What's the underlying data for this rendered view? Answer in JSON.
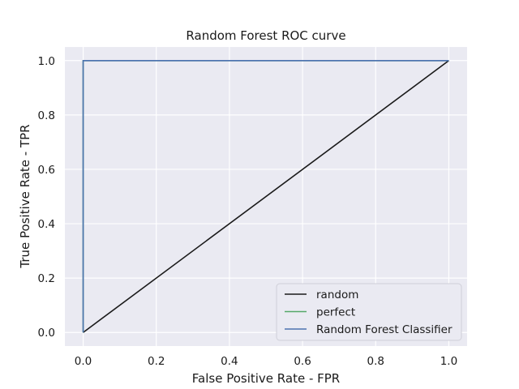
{
  "chart_data": {
    "type": "line",
    "title": "Random Forest ROC curve",
    "xlabel": "False Positive Rate - FPR",
    "ylabel": "True Positive Rate - TPR",
    "xlim": [
      -0.05,
      1.05
    ],
    "ylim": [
      -0.05,
      1.05
    ],
    "xticks": [
      0.0,
      0.2,
      0.4,
      0.6,
      0.8,
      1.0
    ],
    "yticks": [
      0.0,
      0.2,
      0.4,
      0.6,
      0.8,
      1.0
    ],
    "xtick_labels": [
      "0.0",
      "0.2",
      "0.4",
      "0.6",
      "0.8",
      "1.0"
    ],
    "ytick_labels": [
      "0.0",
      "0.2",
      "0.4",
      "0.6",
      "0.8",
      "1.0"
    ],
    "grid": true,
    "background": "#eaeaf2",
    "grid_color": "#ffffff",
    "legend_position": "lower right",
    "series": [
      {
        "name": "random",
        "color": "#1a1a1a",
        "x": [
          0,
          1
        ],
        "y": [
          0,
          1
        ]
      },
      {
        "name": "perfect",
        "color": "#55a868",
        "x": [
          0,
          0,
          1
        ],
        "y": [
          0,
          1,
          1
        ]
      },
      {
        "name": "Random Forest Classifier",
        "color": "#4c72b0",
        "x": [
          0,
          0,
          1
        ],
        "y": [
          0,
          1,
          1
        ]
      }
    ]
  }
}
